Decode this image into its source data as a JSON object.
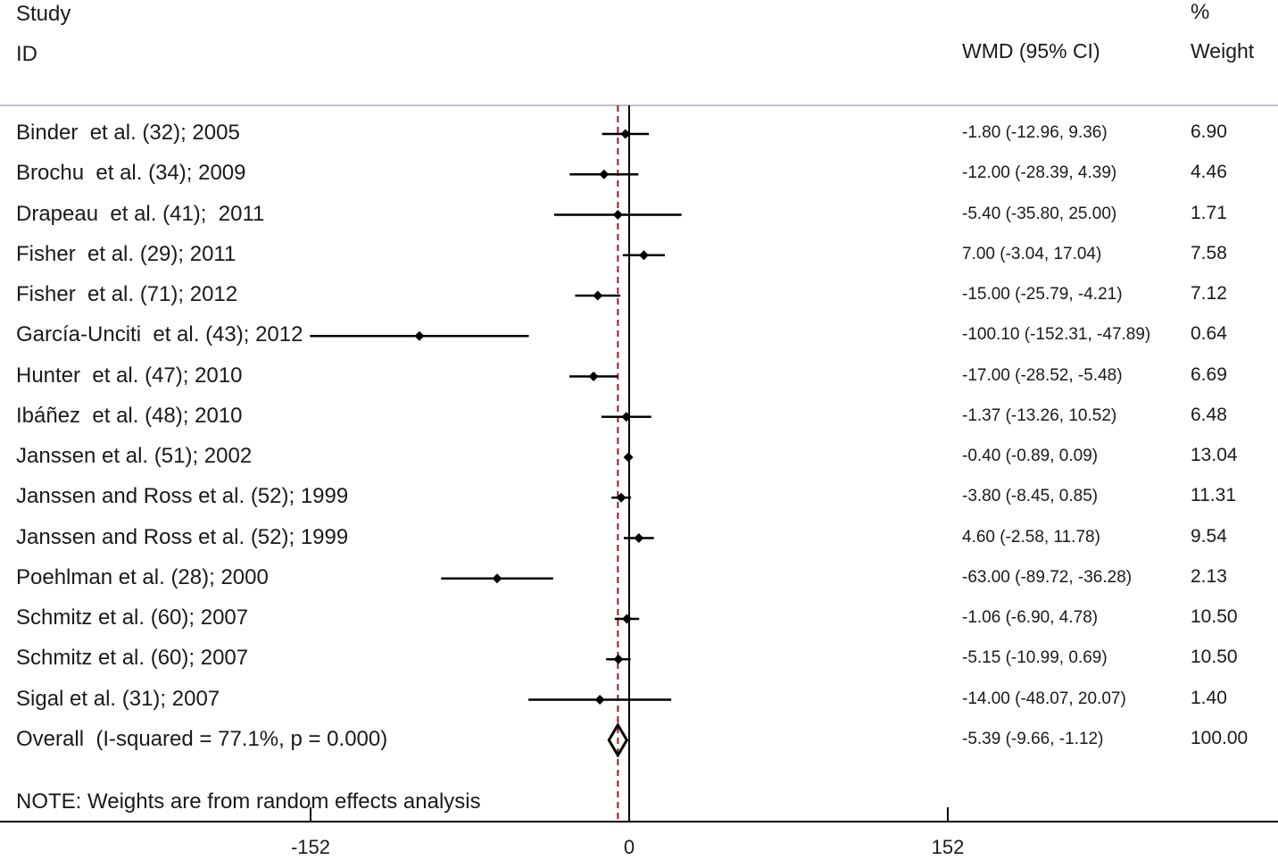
{
  "header": {
    "study_line1": "Study",
    "study_line2": "ID",
    "effect_label": "WMD (95% CI)",
    "weight_line1": "%",
    "weight_line2": "Weight"
  },
  "note": "NOTE: Weights are from random effects analysis",
  "chart_data": {
    "type": "forest",
    "xlabel": "",
    "xlim": [
      -304,
      304
    ],
    "xticks": [
      -152,
      0,
      152
    ],
    "xtick_labels": [
      "-152",
      "0",
      "152"
    ],
    "reference_line": 0,
    "overall_line": -5.39,
    "studies": [
      {
        "label": "Binder  et al. (32); 2005",
        "effect": -1.8,
        "lower": -12.96,
        "upper": 9.36,
        "ci_text": "-1.80 (-12.96, 9.36)",
        "weight": "6.90"
      },
      {
        "label": "Brochu  et al. (34); 2009",
        "effect": -12.0,
        "lower": -28.39,
        "upper": 4.39,
        "ci_text": "-12.00 (-28.39, 4.39)",
        "weight": "4.46"
      },
      {
        "label": "Drapeau  et al. (41);  2011",
        "effect": -5.4,
        "lower": -35.8,
        "upper": 25.0,
        "ci_text": "-5.40 (-35.80, 25.00)",
        "weight": "1.71"
      },
      {
        "label": "Fisher  et al. (29); 2011",
        "effect": 7.0,
        "lower": -3.04,
        "upper": 17.04,
        "ci_text": "7.00 (-3.04, 17.04)",
        "weight": "7.58"
      },
      {
        "label": "Fisher  et al. (71); 2012",
        "effect": -15.0,
        "lower": -25.79,
        "upper": -4.21,
        "ci_text": "-15.00 (-25.79, -4.21)",
        "weight": "7.12"
      },
      {
        "label": "García-Unciti  et al. (43); 2012",
        "effect": -100.1,
        "lower": -152.31,
        "upper": -47.89,
        "ci_text": "-100.10 (-152.31, -47.89)",
        "weight": "0.64"
      },
      {
        "label": "Hunter  et al. (47); 2010",
        "effect": -17.0,
        "lower": -28.52,
        "upper": -5.48,
        "ci_text": "-17.00 (-28.52, -5.48)",
        "weight": "6.69"
      },
      {
        "label": "Ibáñez  et al. (48); 2010",
        "effect": -1.37,
        "lower": -13.26,
        "upper": 10.52,
        "ci_text": "-1.37 (-13.26, 10.52)",
        "weight": "6.48"
      },
      {
        "label": "Janssen et al. (51); 2002",
        "effect": -0.4,
        "lower": -0.89,
        "upper": 0.09,
        "ci_text": "-0.40 (-0.89, 0.09)",
        "weight": "13.04"
      },
      {
        "label": "Janssen and Ross et al. (52); 1999",
        "effect": -3.8,
        "lower": -8.45,
        "upper": 0.85,
        "ci_text": "-3.80 (-8.45, 0.85)",
        "weight": "11.31"
      },
      {
        "label": "Janssen and Ross et al. (52); 1999",
        "effect": 4.6,
        "lower": -2.58,
        "upper": 11.78,
        "ci_text": "4.60 (-2.58, 11.78)",
        "weight": "9.54"
      },
      {
        "label": "Poehlman et al. (28); 2000",
        "effect": -63.0,
        "lower": -89.72,
        "upper": -36.28,
        "ci_text": "-63.00 (-89.72, -36.28)",
        "weight": "2.13"
      },
      {
        "label": "Schmitz et al. (60); 2007",
        "effect": -1.06,
        "lower": -6.9,
        "upper": 4.78,
        "ci_text": "-1.06 (-6.90, 4.78)",
        "weight": "10.50"
      },
      {
        "label": "Schmitz et al. (60); 2007",
        "effect": -5.15,
        "lower": -10.99,
        "upper": 0.69,
        "ci_text": "-5.15 (-10.99, 0.69)",
        "weight": "10.50"
      },
      {
        "label": "Sigal et al. (31); 2007",
        "effect": -14.0,
        "lower": -48.07,
        "upper": 20.07,
        "ci_text": "-14.00 (-48.07, 20.07)",
        "weight": "1.40"
      }
    ],
    "overall": {
      "label": "Overall  (I-squared = 77.1%, p = 0.000)",
      "effect": -5.39,
      "lower": -9.66,
      "upper": -1.12,
      "ci_text": "-5.39 (-9.66, -1.12)",
      "weight": "100.00"
    },
    "colors": {
      "reference_line": "#000000",
      "overall_line": "#9b1b1b",
      "marker": "#000000",
      "separator": "#b9c4cc"
    }
  }
}
